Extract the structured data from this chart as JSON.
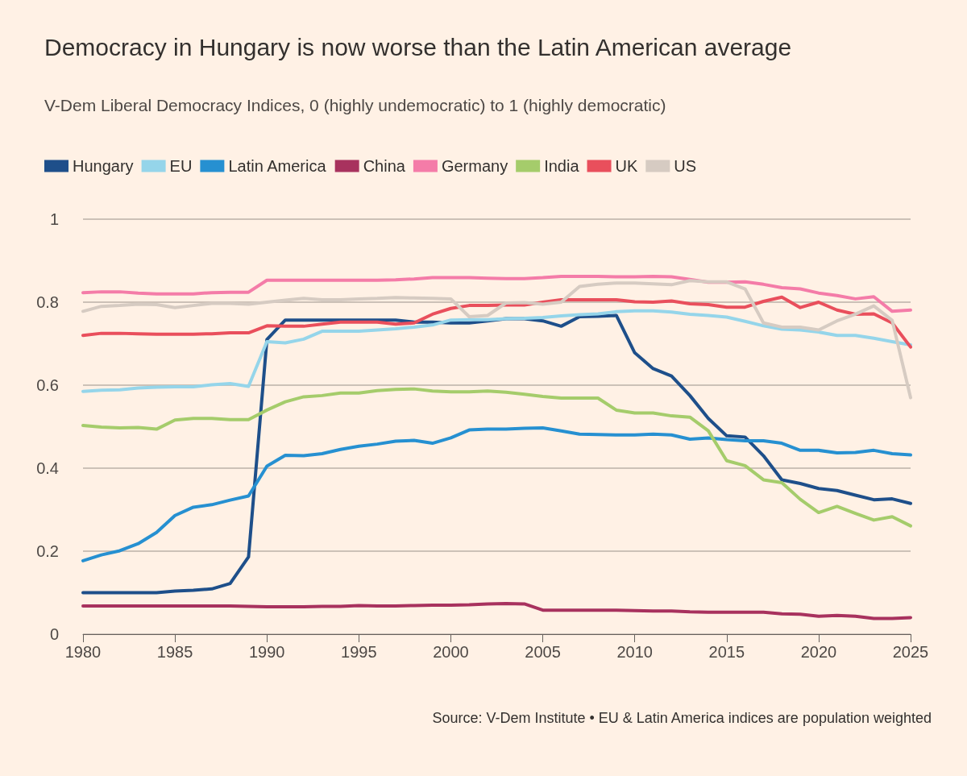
{
  "chart_data": {
    "type": "line",
    "title": "Democracy in Hungary is now worse than the Latin American average",
    "subtitle": "V-Dem Liberal Democracy Indices, 0 (highly undemocratic) to 1 (highly democratic)",
    "annotations": [
      "Source: V-Dem Institute • EU & Latin America indices are population weighted"
    ],
    "x": [
      1980,
      1981,
      1982,
      1983,
      1984,
      1985,
      1986,
      1987,
      1988,
      1989,
      1990,
      1991,
      1992,
      1993,
      1994,
      1995,
      1996,
      1997,
      1998,
      1999,
      2000,
      2001,
      2002,
      2003,
      2004,
      2005,
      2006,
      2007,
      2008,
      2009,
      2010,
      2011,
      2012,
      2013,
      2014,
      2015,
      2016,
      2017,
      2018,
      2019,
      2020,
      2021,
      2022,
      2023,
      2024,
      2025
    ],
    "series": [
      {
        "name": "Hungary",
        "color": "#1e4f8a",
        "values": [
          0.1,
          0.1,
          0.1,
          0.1,
          0.1,
          0.104,
          0.106,
          0.109,
          0.122,
          0.186,
          0.71,
          0.757,
          0.757,
          0.757,
          0.757,
          0.757,
          0.757,
          0.757,
          0.752,
          0.752,
          0.75,
          0.75,
          0.755,
          0.76,
          0.76,
          0.755,
          0.742,
          0.765,
          0.766,
          0.768,
          0.678,
          0.64,
          0.622,
          0.575,
          0.52,
          0.478,
          0.475,
          0.43,
          0.372,
          0.363,
          0.351,
          0.346,
          0.335,
          0.324,
          0.326,
          0.315
        ]
      },
      {
        "name": "EU",
        "color": "#95d5ea",
        "values": [
          0.585,
          0.588,
          0.589,
          0.593,
          0.595,
          0.596,
          0.596,
          0.601,
          0.604,
          0.597,
          0.705,
          0.702,
          0.711,
          0.73,
          0.73,
          0.73,
          0.733,
          0.736,
          0.74,
          0.745,
          0.757,
          0.758,
          0.758,
          0.76,
          0.761,
          0.763,
          0.767,
          0.77,
          0.772,
          0.777,
          0.779,
          0.779,
          0.776,
          0.771,
          0.768,
          0.764,
          0.754,
          0.743,
          0.735,
          0.733,
          0.728,
          0.72,
          0.72,
          0.713,
          0.705,
          0.697
        ]
      },
      {
        "name": "Latin America",
        "color": "#2690d1",
        "values": [
          0.177,
          0.191,
          0.201,
          0.218,
          0.245,
          0.286,
          0.306,
          0.312,
          0.323,
          0.333,
          0.405,
          0.431,
          0.43,
          0.435,
          0.445,
          0.453,
          0.458,
          0.465,
          0.467,
          0.46,
          0.473,
          0.492,
          0.494,
          0.494,
          0.496,
          0.497,
          0.49,
          0.482,
          0.481,
          0.48,
          0.48,
          0.482,
          0.48,
          0.47,
          0.473,
          0.469,
          0.466,
          0.466,
          0.46,
          0.443,
          0.443,
          0.437,
          0.438,
          0.443,
          0.435,
          0.432
        ]
      },
      {
        "name": "China",
        "color": "#a8325e",
        "values": [
          0.068,
          0.068,
          0.068,
          0.068,
          0.068,
          0.068,
          0.068,
          0.068,
          0.068,
          0.067,
          0.066,
          0.066,
          0.066,
          0.067,
          0.067,
          0.069,
          0.068,
          0.068,
          0.069,
          0.07,
          0.07,
          0.071,
          0.073,
          0.074,
          0.073,
          0.058,
          0.058,
          0.058,
          0.058,
          0.058,
          0.057,
          0.056,
          0.056,
          0.054,
          0.053,
          0.053,
          0.053,
          0.053,
          0.049,
          0.048,
          0.043,
          0.045,
          0.043,
          0.038,
          0.038,
          0.04
        ]
      },
      {
        "name": "Germany",
        "color": "#f47ca8",
        "values": [
          0.823,
          0.825,
          0.825,
          0.822,
          0.82,
          0.82,
          0.82,
          0.823,
          0.824,
          0.824,
          0.853,
          0.853,
          0.853,
          0.853,
          0.853,
          0.853,
          0.853,
          0.854,
          0.856,
          0.859,
          0.859,
          0.859,
          0.858,
          0.857,
          0.857,
          0.859,
          0.862,
          0.862,
          0.862,
          0.861,
          0.861,
          0.862,
          0.861,
          0.855,
          0.848,
          0.848,
          0.849,
          0.843,
          0.835,
          0.832,
          0.822,
          0.816,
          0.808,
          0.813,
          0.778,
          0.781
        ]
      },
      {
        "name": "India",
        "color": "#a5cc6b",
        "values": [
          0.503,
          0.499,
          0.497,
          0.498,
          0.494,
          0.516,
          0.52,
          0.52,
          0.517,
          0.517,
          0.54,
          0.56,
          0.572,
          0.575,
          0.581,
          0.581,
          0.587,
          0.59,
          0.591,
          0.586,
          0.584,
          0.584,
          0.586,
          0.583,
          0.578,
          0.573,
          0.569,
          0.569,
          0.569,
          0.54,
          0.533,
          0.533,
          0.526,
          0.523,
          0.49,
          0.418,
          0.406,
          0.372,
          0.365,
          0.325,
          0.293,
          0.308,
          0.291,
          0.275,
          0.283,
          0.261
        ]
      },
      {
        "name": "UK",
        "color": "#e94f5c",
        "values": [
          0.72,
          0.725,
          0.725,
          0.724,
          0.723,
          0.723,
          0.723,
          0.724,
          0.726,
          0.726,
          0.743,
          0.742,
          0.742,
          0.747,
          0.752,
          0.752,
          0.752,
          0.747,
          0.75,
          0.771,
          0.785,
          0.792,
          0.792,
          0.793,
          0.793,
          0.8,
          0.806,
          0.806,
          0.806,
          0.806,
          0.801,
          0.8,
          0.803,
          0.796,
          0.794,
          0.788,
          0.788,
          0.802,
          0.812,
          0.787,
          0.8,
          0.781,
          0.771,
          0.772,
          0.75,
          0.692
        ]
      },
      {
        "name": "US",
        "color": "#d6cbc2",
        "values": [
          0.778,
          0.79,
          0.792,
          0.795,
          0.794,
          0.787,
          0.792,
          0.797,
          0.797,
          0.795,
          0.8,
          0.805,
          0.809,
          0.806,
          0.806,
          0.808,
          0.809,
          0.811,
          0.81,
          0.809,
          0.808,
          0.765,
          0.768,
          0.798,
          0.799,
          0.795,
          0.8,
          0.838,
          0.843,
          0.846,
          0.846,
          0.844,
          0.842,
          0.852,
          0.849,
          0.849,
          0.832,
          0.75,
          0.74,
          0.74,
          0.733,
          0.755,
          0.771,
          0.791,
          0.756,
          0.57
        ]
      }
    ],
    "xlim": [
      1980,
      2025
    ],
    "xticks": [
      1980,
      1985,
      1990,
      1995,
      2000,
      2005,
      2010,
      2015,
      2020,
      2025
    ],
    "ylim": [
      0,
      1
    ],
    "yticks": [
      0,
      0.2,
      0.4,
      0.6,
      0.8,
      1
    ],
    "grid": "y",
    "legend": "top left",
    "marker": "none",
    "line_style": "solid"
  }
}
